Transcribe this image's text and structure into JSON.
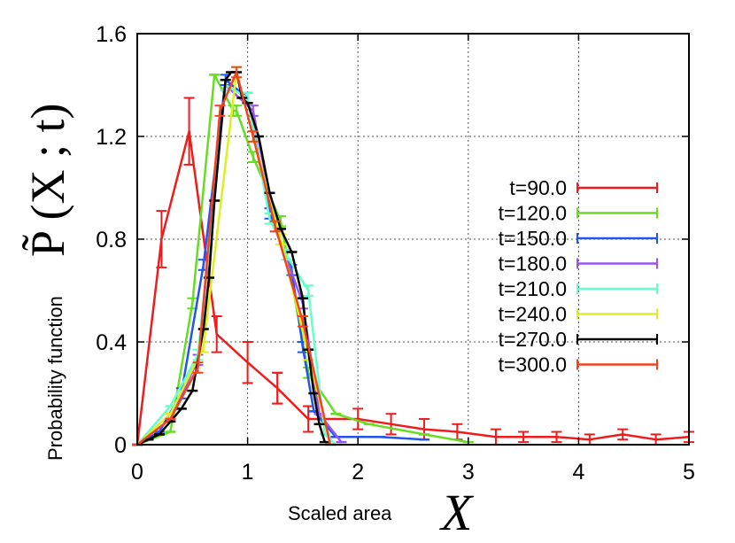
{
  "chart_data": {
    "type": "line",
    "title": "",
    "xlabel_text": "Scaled area",
    "xlabel_symbol": "X",
    "ylabel_text": "Probability function",
    "ylabel_symbol": "P̃ (X ; t)",
    "xlim": [
      0,
      5
    ],
    "ylim": [
      0,
      1.6
    ],
    "xticks": [
      "0",
      "1",
      "2",
      "3",
      "4",
      "5"
    ],
    "yticks": [
      "0",
      "0.4",
      "0.8",
      "1.2",
      "1.6"
    ],
    "grid": true,
    "legend_position": "right",
    "series": [
      {
        "name": "t=90.0",
        "color": "#ee1c1c",
        "x": [
          0,
          0.22,
          0.47,
          0.72,
          1.0,
          1.27,
          1.27,
          1.55,
          2.0,
          2.3,
          2.6,
          2.9,
          3.25,
          3.5,
          3.8,
          4.1,
          4.4,
          4.7,
          5.0
        ],
        "y": [
          0,
          0.8,
          1.22,
          0.43,
          0.32,
          0.22,
          0.22,
          0.1,
          0.1,
          0.08,
          0.06,
          0.05,
          0.03,
          0.03,
          0.03,
          0.02,
          0.04,
          0.02,
          0.03
        ],
        "err": [
          0,
          0.11,
          0.13,
          0.07,
          0.08,
          0.06,
          0.06,
          0.05,
          0.04,
          0.04,
          0.04,
          0.03,
          0.03,
          0.02,
          0.02,
          0.02,
          0.02,
          0.02,
          0.02
        ]
      },
      {
        "name": "t=120.0",
        "color": "#66dd22",
        "x": [
          0,
          0.3,
          0.5,
          0.7,
          0.87,
          0.9,
          1.05,
          1.3,
          1.55,
          1.8,
          2.1,
          2.6,
          3.0
        ],
        "y": [
          0,
          0.05,
          0.55,
          1.44,
          1.3,
          1.3,
          1.12,
          0.87,
          0.28,
          0.12,
          0.08,
          0.04,
          0.01
        ],
        "err": [
          0,
          0.01,
          0.02,
          0.01,
          0.02,
          0.02,
          0.02,
          0.02,
          0.02,
          0.01,
          0.01,
          0.01,
          0.01
        ]
      },
      {
        "name": "t=150.0",
        "color": "#2255ee",
        "x": [
          0,
          0.2,
          0.4,
          0.6,
          0.8,
          1.0,
          1.2,
          1.4,
          1.5,
          1.6,
          1.8,
          2.2,
          2.6
        ],
        "y": [
          0,
          0.05,
          0.2,
          0.7,
          1.42,
          1.35,
          0.9,
          0.68,
          0.38,
          0.13,
          0.03,
          0.03,
          0.02
        ],
        "err": [
          0,
          0.01,
          0.02,
          0.02,
          0.02,
          0.02,
          0.02,
          0.02,
          0.02,
          0.01,
          0.01,
          0.01,
          0.01
        ]
      },
      {
        "name": "t=180.0",
        "color": "#9955ee",
        "x": [
          0,
          0.3,
          0.55,
          0.8,
          1.05,
          1.25,
          1.5,
          1.65,
          1.85
        ],
        "y": [
          0,
          0.1,
          0.33,
          1.4,
          1.3,
          0.85,
          0.55,
          0.12,
          0.01
        ],
        "err": [
          0,
          0.01,
          0.02,
          0.02,
          0.02,
          0.02,
          0.02,
          0.01,
          0.01
        ]
      },
      {
        "name": "t=210.0",
        "color": "#66ffcc",
        "x": [
          0,
          0.3,
          0.55,
          0.8,
          1.0,
          1.2,
          1.35,
          1.55,
          1.7,
          1.8
        ],
        "y": [
          0,
          0.15,
          0.35,
          1.4,
          1.35,
          0.88,
          0.74,
          0.6,
          0.04,
          0.0
        ],
        "err": [
          0,
          0.01,
          0.02,
          0.02,
          0.02,
          0.02,
          0.02,
          0.02,
          0.01,
          0.0
        ]
      },
      {
        "name": "t=240.0",
        "color": "#ddee22",
        "x": [
          0,
          0.3,
          0.6,
          0.9,
          1.05,
          1.3,
          1.55,
          1.75
        ],
        "y": [
          0,
          0.12,
          0.38,
          1.45,
          1.2,
          0.8,
          0.35,
          0.0
        ],
        "err": [
          0,
          0.01,
          0.02,
          0.02,
          0.02,
          0.02,
          0.02,
          0.0
        ]
      },
      {
        "name": "t=270.0",
        "color": "#000000",
        "x": [
          0,
          0.1,
          0.2,
          0.3,
          0.4,
          0.5,
          0.6,
          0.65,
          0.7,
          0.8,
          0.85,
          0.9,
          0.95,
          1.0,
          1.1,
          1.2,
          1.3,
          1.4,
          1.5,
          1.55,
          1.6,
          1.65,
          1.7
        ],
        "y": [
          0,
          0.02,
          0.04,
          0.09,
          0.14,
          0.21,
          0.45,
          0.65,
          0.95,
          1.42,
          1.45,
          1.45,
          1.35,
          1.33,
          1.2,
          0.98,
          0.84,
          0.75,
          0.57,
          0.37,
          0.2,
          0.08,
          0.01
        ],
        "err": [
          0,
          0.01,
          0.01,
          0.01,
          0.01,
          0.01,
          0.01,
          0.01,
          0.01,
          0.01,
          0.01,
          0.01,
          0.01,
          0.01,
          0.01,
          0.01,
          0.01,
          0.01,
          0.01,
          0.01,
          0.01,
          0.01,
          0.01
        ]
      },
      {
        "name": "t=300.0",
        "color": "#ee4422",
        "x": [
          0,
          0.3,
          0.55,
          0.75,
          0.9,
          1.05,
          1.25,
          1.5,
          1.75
        ],
        "y": [
          0,
          0.1,
          0.3,
          1.3,
          1.45,
          1.2,
          0.85,
          0.48,
          0.0
        ],
        "err": [
          0,
          0.01,
          0.02,
          0.02,
          0.02,
          0.02,
          0.02,
          0.02,
          0.0
        ]
      }
    ]
  }
}
